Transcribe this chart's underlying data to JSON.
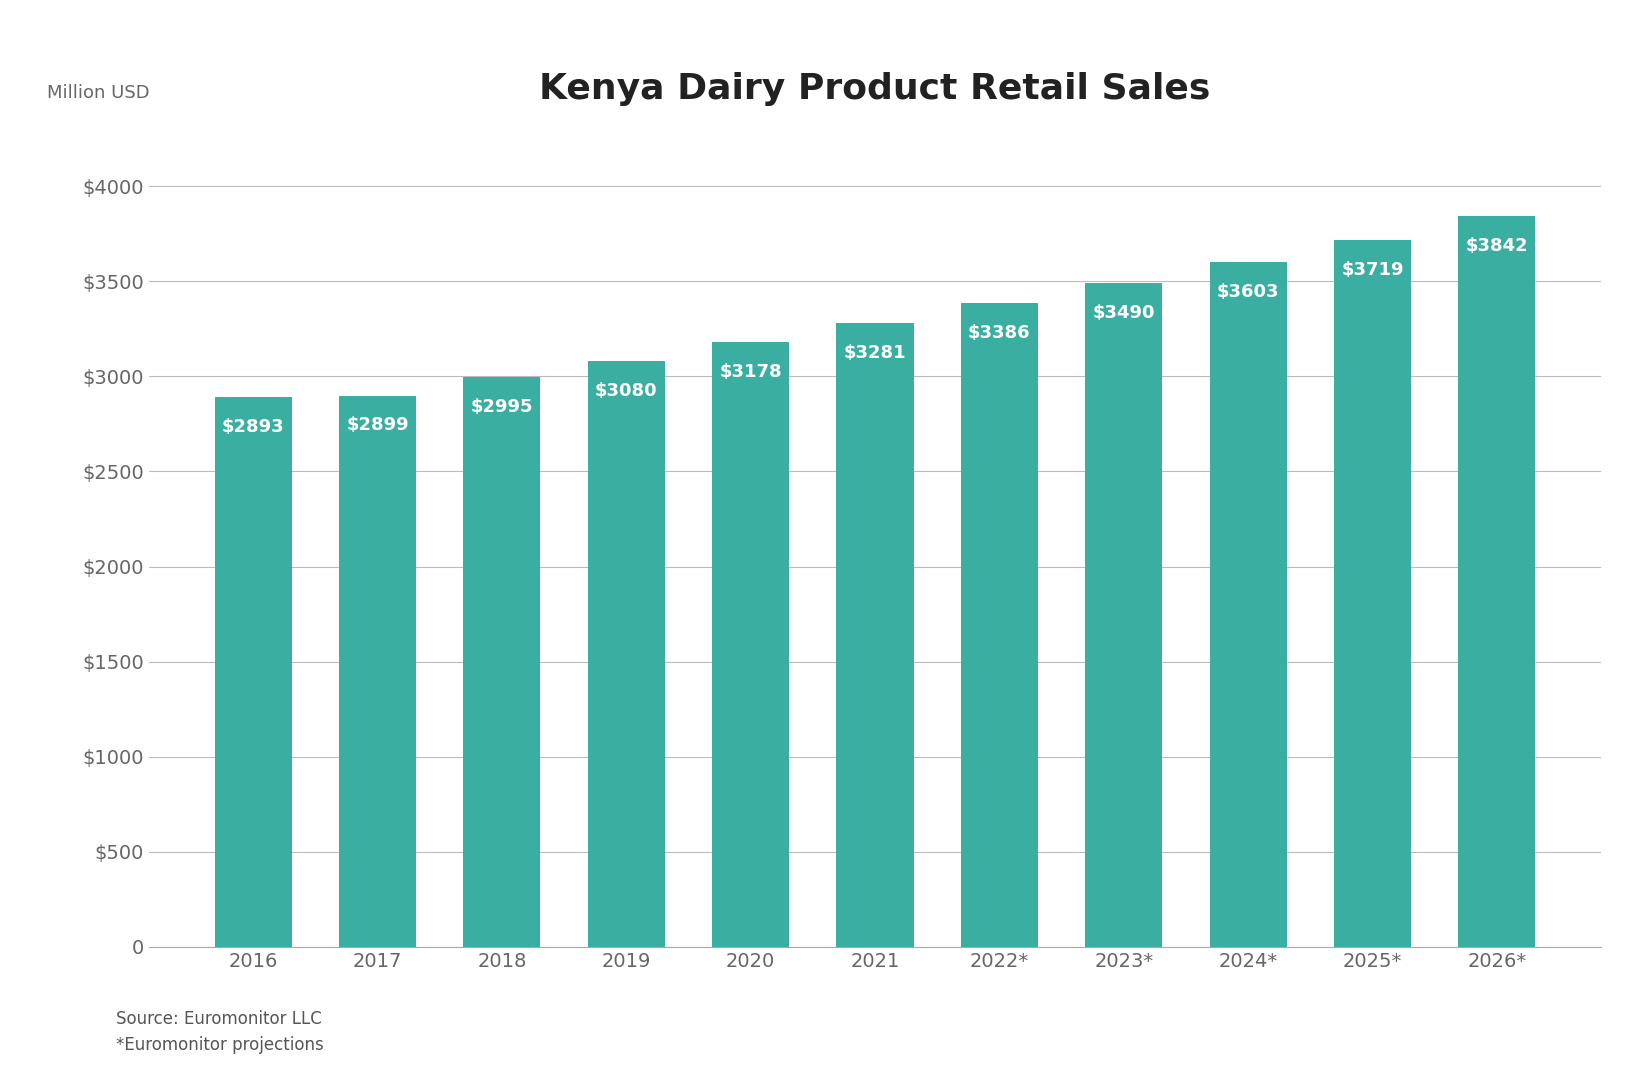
{
  "title": "Kenya Dairy Product Retail Sales",
  "ylabel": "Million USD",
  "categories": [
    "2016",
    "2017",
    "2018",
    "2019",
    "2020",
    "2021",
    "2022*",
    "2023*",
    "2024*",
    "2025*",
    "2026*"
  ],
  "values": [
    2893,
    2899,
    2995,
    3080,
    3178,
    3281,
    3386,
    3490,
    3603,
    3719,
    3842
  ],
  "bar_color": "#3aaea0",
  "label_color": "#ffffff",
  "yticks": [
    0,
    500,
    1000,
    1500,
    2000,
    2500,
    3000,
    3500,
    4000
  ],
  "ylim": [
    0,
    4300
  ],
  "title_fontsize": 26,
  "axis_label_fontsize": 13,
  "tick_fontsize": 14,
  "bar_label_fontsize": 13,
  "source_text": "Source: Euromonitor LLC\n*Euromonitor projections",
  "source_fontsize": 12,
  "background_color": "#ffffff",
  "grid_color": "#bbbbbb"
}
